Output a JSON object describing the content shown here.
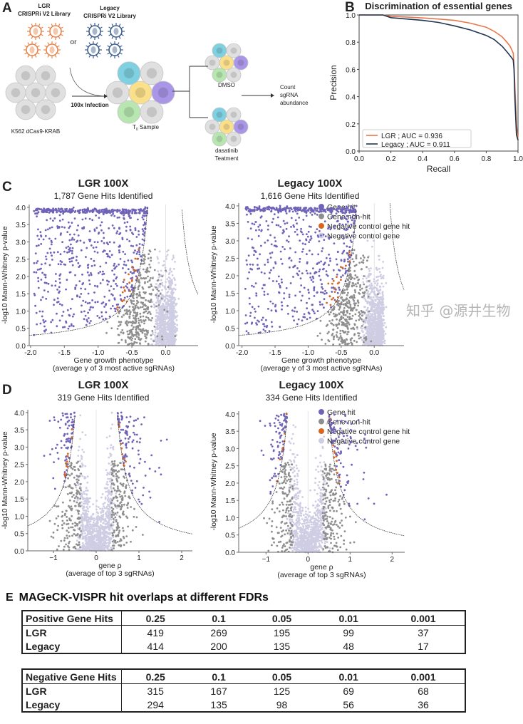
{
  "panel_labels": {
    "a": "A",
    "b": "B",
    "c": "C",
    "d": "D",
    "e": "E"
  },
  "schematic": {
    "lgr_library": [
      "LGR",
      "CRISPRi V2 Library"
    ],
    "legacy_library": [
      "Legacy",
      "CRISPRi V2 Library"
    ],
    "or": "or",
    "cell_line": "K562 dCas9-KRAB",
    "infection": "100x Infection",
    "t0_sample": "T",
    "t0_sub": "0",
    "t0_suffix": " Sample",
    "dmso": "DMSO",
    "treatment": [
      "dasatinib",
      "Teatment"
    ],
    "readout": [
      "Count",
      "sgRNA",
      "abundance"
    ],
    "colors": {
      "lgr": "#e8844a",
      "legacy": "#3d5f8f",
      "cell": "#e0e0e0",
      "cyan": "#7fd0e0",
      "yellow": "#fbe08c",
      "purple": "#a996e6",
      "green": "#b8e6b0"
    }
  },
  "legend": [
    "Gene hit",
    "Gene non-hit",
    "Negative control gene hit",
    "Negative control gene"
  ],
  "chart_data": [
    {
      "id": "B",
      "type": "line",
      "title": "Discrimination of essential genes",
      "xlabel": "Recall",
      "ylabel": "Precision",
      "xlim": [
        0,
        1
      ],
      "ylim": [
        0,
        1
      ],
      "xticks": [
        "0.0",
        "0.2",
        "0.4",
        "0.6",
        "0.8",
        "1.0"
      ],
      "yticks": [
        "0.0",
        "0.2",
        "0.4",
        "0.6",
        "0.8",
        "1.0"
      ],
      "legend_position": "bottom-left",
      "series": [
        {
          "name": "LGR ; AUC = 0.936",
          "color": "#e8784a",
          "x": [
            0,
            0.15,
            0.2,
            0.3,
            0.4,
            0.5,
            0.6,
            0.7,
            0.8,
            0.85,
            0.9,
            0.93,
            0.95,
            0.97,
            0.975,
            0.98,
            0.99,
            1.0
          ],
          "y": [
            1,
            1,
            0.99,
            0.985,
            0.978,
            0.97,
            0.96,
            0.94,
            0.91,
            0.88,
            0.84,
            0.8,
            0.77,
            0.72,
            0.62,
            0.5,
            0.2,
            0.08
          ]
        },
        {
          "name": "Legacy ; AUC = 0.911",
          "color": "#1f3552",
          "x": [
            0,
            0.15,
            0.2,
            0.3,
            0.4,
            0.5,
            0.6,
            0.7,
            0.8,
            0.85,
            0.9,
            0.93,
            0.95,
            0.97,
            0.975,
            0.98,
            0.99,
            1.0
          ],
          "y": [
            1,
            1,
            0.98,
            0.97,
            0.96,
            0.945,
            0.92,
            0.89,
            0.85,
            0.82,
            0.77,
            0.73,
            0.7,
            0.67,
            0.6,
            0.4,
            0.12,
            0.08
          ]
        }
      ]
    },
    {
      "id": "C-LGR",
      "type": "scatter",
      "title": "LGR 100X",
      "subtitle": "1,787 Gene Hits Identified",
      "xlabel": [
        "Gene growth phenotype",
        "(average γ of 3 most active sgRNAs)"
      ],
      "ylabel": "-log10 Mann-Whitney p-value",
      "xlim": [
        -2.02,
        0.48
      ],
      "ylim": [
        0,
        4.08
      ],
      "xticks": [
        -2.0,
        -1.5,
        -1.0,
        -0.5,
        0.0
      ],
      "yticks": [
        0.0,
        0.5,
        1.0,
        1.5,
        2.0,
        2.5,
        3.0,
        3.5,
        4.0
      ],
      "hits": 1787,
      "mode": "negative"
    },
    {
      "id": "C-Legacy",
      "type": "scatter",
      "title": "Legacy 100X",
      "subtitle": "1,616 Gene Hits Identified",
      "xlabel": [
        "Gene growth phenotype",
        "(average γ of 3 most active sgRNAs)"
      ],
      "ylabel": "-log10 Mann-Whitney p-value",
      "xlim": [
        -2.05,
        0.45
      ],
      "ylim": [
        0,
        4.08
      ],
      "xticks": [
        -2.0,
        -1.5,
        -1.0,
        -0.5,
        0.0
      ],
      "yticks": [
        0.0,
        0.5,
        1.0,
        1.5,
        2.0,
        2.5,
        3.0,
        3.5,
        4.0
      ],
      "hits": 1616,
      "mode": "negative"
    },
    {
      "id": "D-LGR",
      "type": "scatter",
      "title": "LGR 100X",
      "subtitle": "319 Gene Hits Identified",
      "xlabel": [
        "gene ρ",
        "(average of top 3 sgRNAs)"
      ],
      "ylabel": "-log10 Mann-Whitney p-value",
      "xlim": [
        -1.6,
        2.25
      ],
      "ylim": [
        0,
        4.08
      ],
      "xticks": [
        -1,
        0,
        1,
        2
      ],
      "yticks": [
        0.0,
        0.5,
        1.0,
        1.5,
        2.0,
        2.5,
        3.0,
        3.5,
        4.0
      ],
      "hits": 319,
      "mode": "both"
    },
    {
      "id": "D-Legacy",
      "type": "scatter",
      "title": "Legacy 100X",
      "subtitle": "334 Gene Hits Identified",
      "xlabel": [
        "gene ρ",
        "(average of top 3 sgRNAs)"
      ],
      "ylabel": "-log10 Mann-Whitney p-value",
      "xlim": [
        -1.65,
        2.3
      ],
      "ylim": [
        0,
        4.08
      ],
      "xticks": [
        -1,
        0,
        1,
        2
      ],
      "yticks": [
        0.0,
        0.5,
        1.0,
        1.5,
        2.0,
        2.5,
        3.0,
        3.5,
        4.0
      ],
      "hits": 334,
      "mode": "both"
    }
  ],
  "scatter_colors": {
    "Gene hit": "#6f63b8",
    "Gene non-hit": "#8e8e8e",
    "Negative control gene hit": "#d9661f",
    "Negative control gene": "#cfcde3"
  },
  "table": {
    "title": "MAGeCK-VISPR hit overlaps at different FDRs",
    "fdrs": [
      "0.25",
      "0.1",
      "0.05",
      "0.01",
      "0.001"
    ],
    "positive": {
      "header": "Positive Gene Hits",
      "rows": [
        {
          "label": "LGR",
          "values": [
            "419",
            "269",
            "195",
            "99",
            "37"
          ]
        },
        {
          "label": "Legacy",
          "values": [
            "414",
            "200",
            "135",
            "48",
            "17"
          ]
        }
      ]
    },
    "negative": {
      "header": "Negative Gene Hits",
      "rows": [
        {
          "label": "LGR",
          "values": [
            "315",
            "167",
            "125",
            "69",
            "68"
          ]
        },
        {
          "label": "Legacy",
          "values": [
            "294",
            "135",
            "98",
            "56",
            "36"
          ]
        }
      ]
    }
  },
  "watermark": "知乎 @源井生物"
}
